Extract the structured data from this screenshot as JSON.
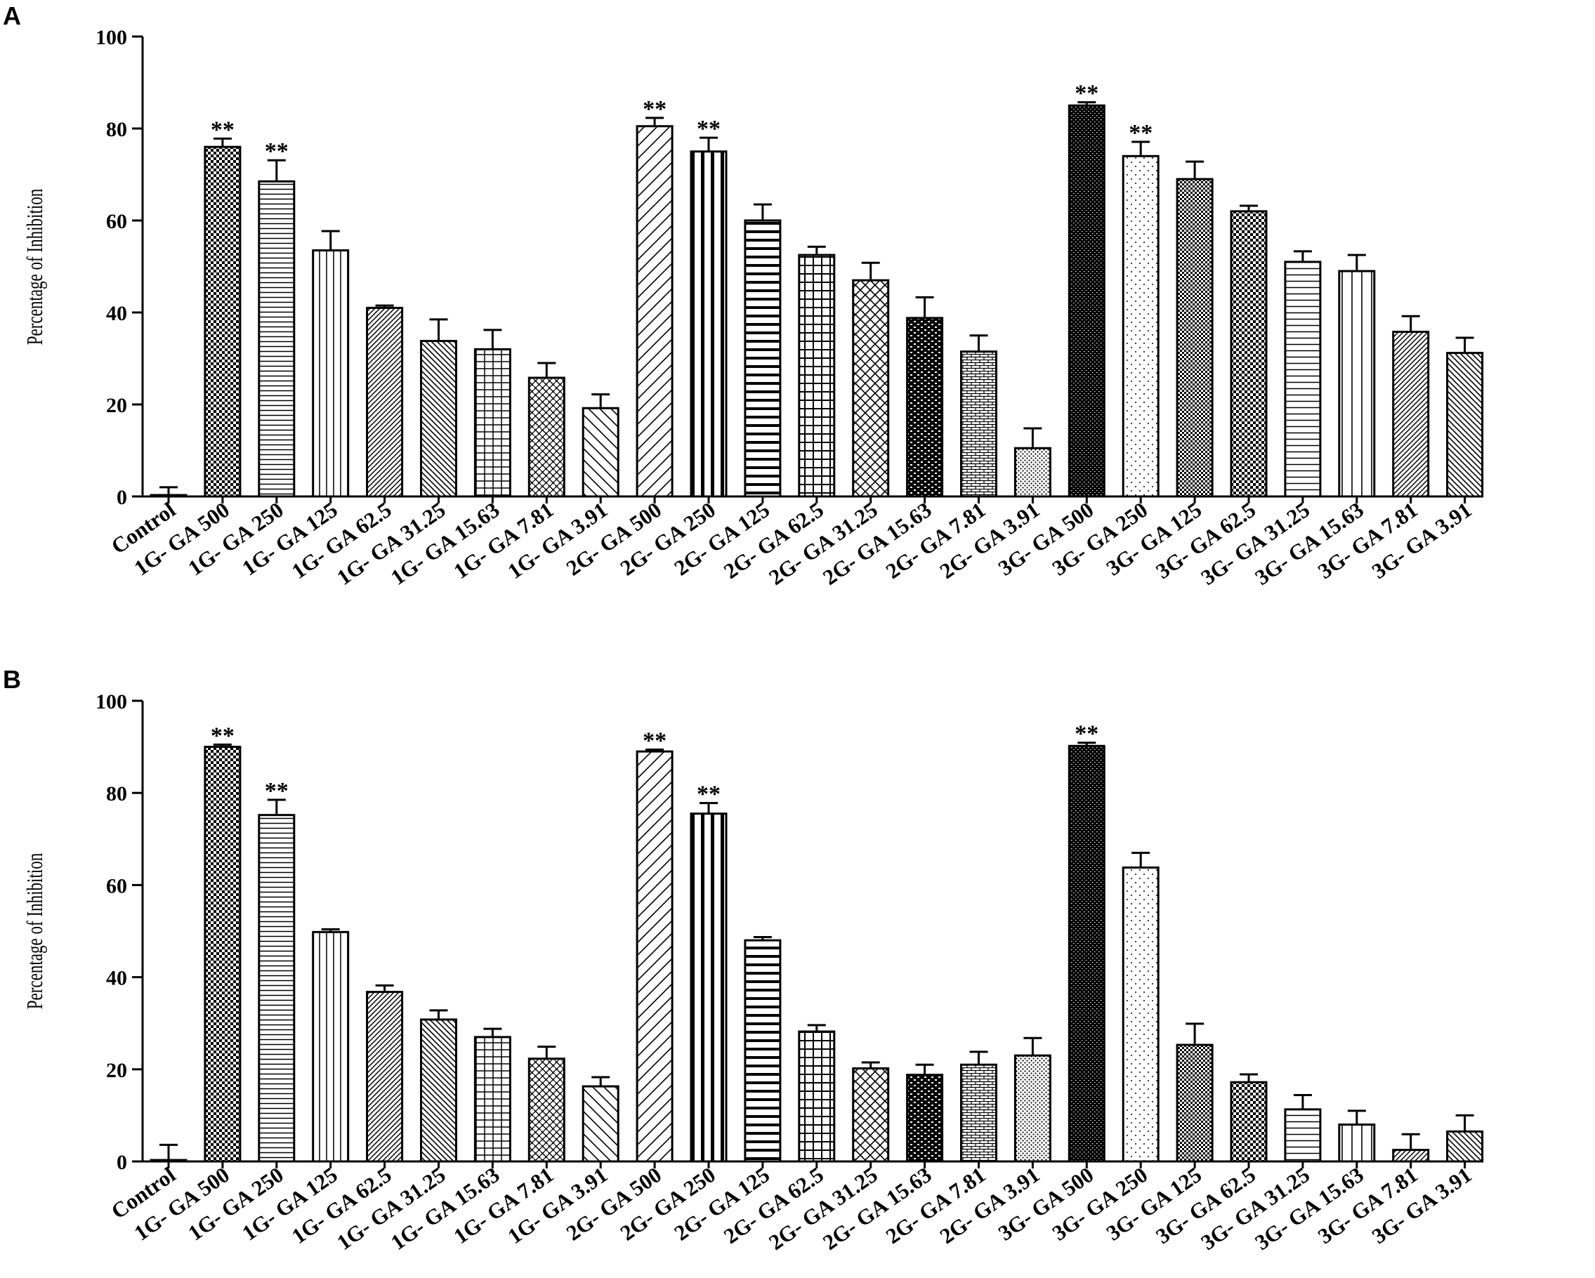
{
  "chart_data": [
    {
      "type": "bar",
      "panel": "A",
      "ylabel": "Percentage of Inhibition",
      "ylim": [
        0,
        100
      ],
      "yticks": [
        "0",
        "20",
        "40",
        "60",
        "80",
        "100"
      ],
      "categories": [
        "Control",
        "1G- GA 500",
        "1G- GA 250",
        "1G- GA 125",
        "1G- GA 62.5",
        "1G- GA 31.25",
        "1G- GA 15.63",
        "1G- GA 7.81",
        "1G- GA 3.91",
        "2G- GA 500",
        "2G- GA 250",
        "2G- GA 125",
        "2G- GA 62.5",
        "2G- GA 31.25",
        "2G- GA 15.63",
        "2G- GA 7.81",
        "2G- GA 3.91",
        "3G- GA 500",
        "3G- GA 250",
        "3G- GA 125",
        "3G- GA 62.5",
        "3G- GA 31.25",
        "3G- GA 15.63",
        "3G- GA 7.81",
        "3G- GA 3.91"
      ],
      "values": [
        0.3,
        76,
        68.5,
        53.5,
        41,
        33.8,
        32,
        25.8,
        19.2,
        80.5,
        75,
        60,
        52.5,
        47,
        38.8,
        31.5,
        10.5,
        85,
        74,
        69,
        62,
        51,
        49,
        35.8,
        31.2
      ],
      "errors": [
        1.7,
        1.8,
        4.6,
        4.2,
        0.5,
        4.7,
        4.2,
        3.2,
        3,
        1.8,
        3,
        3.5,
        1.8,
        3.8,
        4.5,
        3.5,
        4.3,
        0.7,
        3.1,
        3.8,
        1.2,
        2.3,
        3.5,
        3.4,
        3.3
      ],
      "significance": [
        "",
        "**",
        "**",
        "",
        "",
        "",
        "",
        "",
        "",
        "**",
        "**",
        "",
        "",
        "",
        "",
        "",
        "",
        "**",
        "**",
        "",
        "",
        "",
        "",
        "",
        ""
      ]
    },
    {
      "type": "bar",
      "panel": "B",
      "ylabel": "Percentage of Inhibition",
      "ylim": [
        0,
        100
      ],
      "yticks": [
        "0",
        "20",
        "40",
        "60",
        "80",
        "100"
      ],
      "categories": [
        "Control",
        "1G- GA 500",
        "1G- GA 250",
        "1G- GA 125",
        "1G- GA 62.5",
        "1G- GA 31.25",
        "1G- GA 15.63",
        "1G- GA 7.81",
        "1G- GA 3.91",
        "2G- GA 500",
        "2G- GA 250",
        "2G- GA 125",
        "2G- GA 62.5",
        "2G- GA 31.25",
        "2G- GA 15.63",
        "2G- GA 7.81",
        "2G- GA 3.91",
        "3G- GA 500",
        "3G- GA 250",
        "3G- GA 125",
        "3G- GA 62.5",
        "3G- GA 31.25",
        "3G- GA 15.63",
        "3G- GA 7.81",
        "3G- GA 3.91"
      ],
      "values": [
        0.3,
        90,
        75.2,
        49.8,
        36.8,
        30.8,
        27,
        22.3,
        16.3,
        89,
        75.5,
        48,
        28.2,
        20.2,
        18.8,
        21,
        23,
        90.2,
        63.8,
        25.3,
        17.2,
        11.3,
        8,
        2.5,
        6.5
      ],
      "errors": [
        3.3,
        0.5,
        3.3,
        0.6,
        1.4,
        2,
        1.8,
        2.6,
        2,
        0.4,
        2.3,
        0.7,
        1.4,
        1.3,
        2.2,
        2.8,
        3.8,
        0.7,
        3.2,
        4.6,
        1.7,
        3.1,
        3,
        3.4,
        3.5
      ],
      "significance": [
        "",
        "**",
        "**",
        "",
        "",
        "",
        "",
        "",
        "",
        "**",
        "**",
        "",
        "",
        "",
        "",
        "",
        "",
        "**",
        "",
        "",
        "",
        "",
        "",
        "",
        ""
      ]
    }
  ]
}
